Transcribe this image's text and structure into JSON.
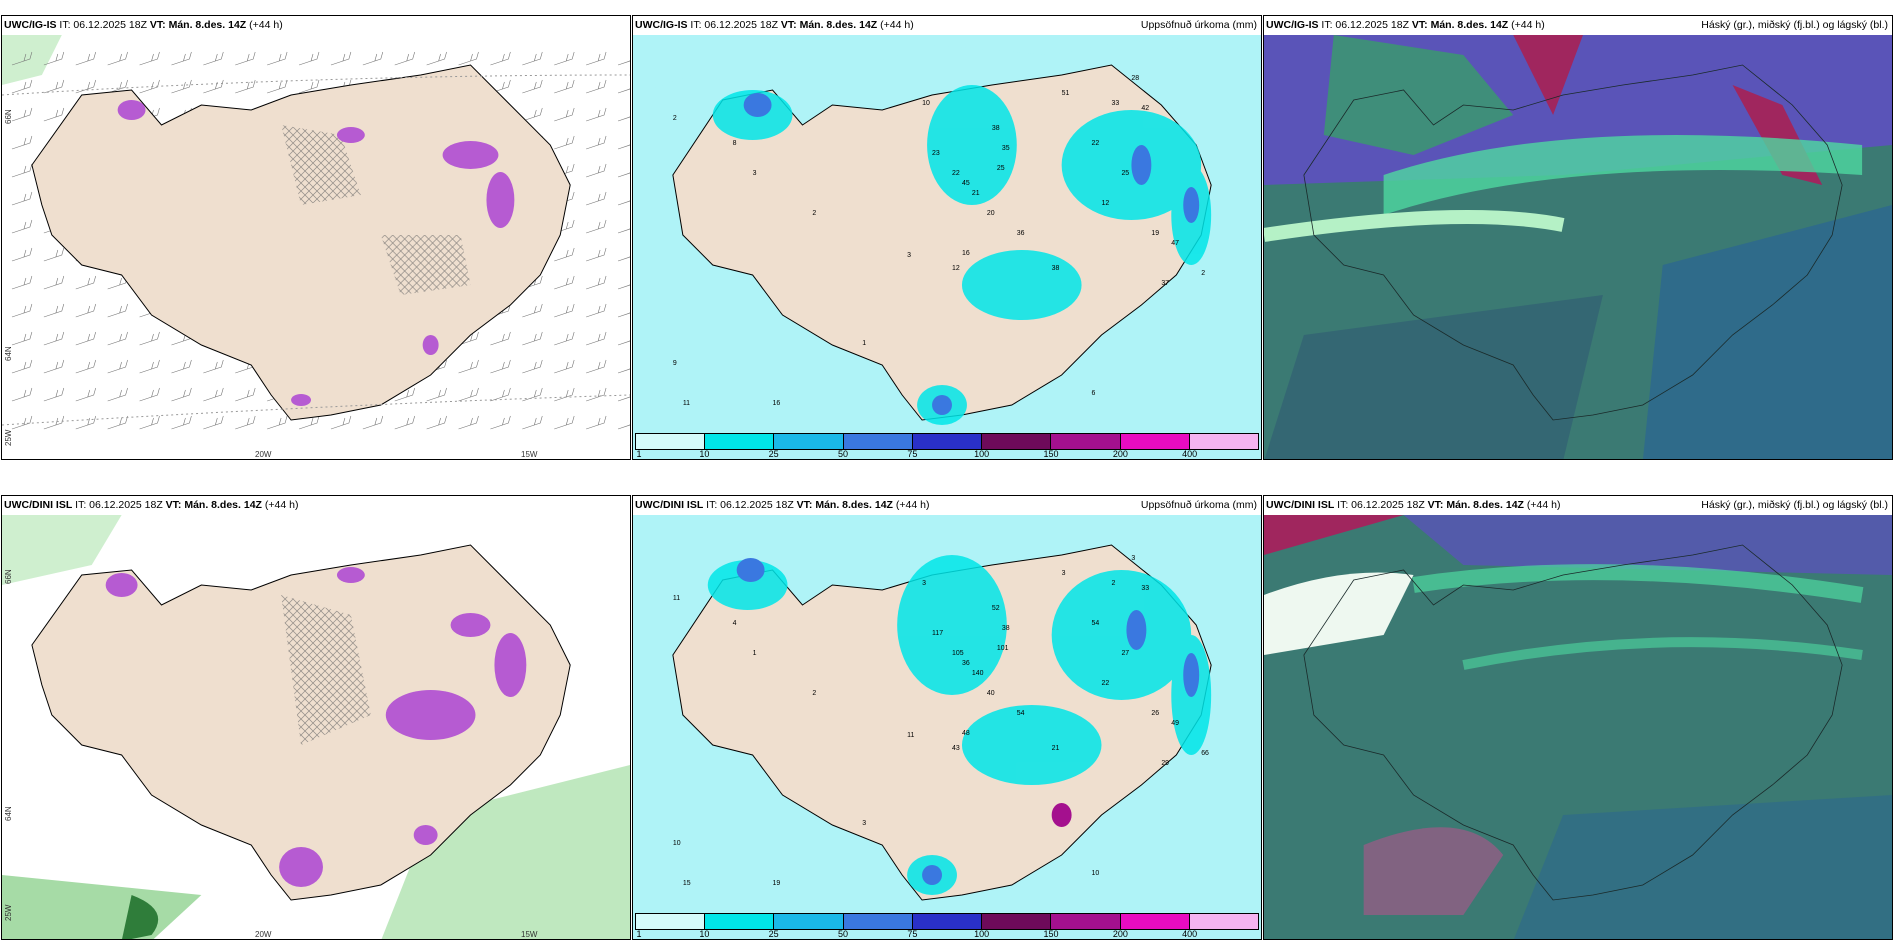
{
  "panels": [
    {
      "source": "UWC/IG-IS",
      "it": "IT: 06.12.2025 18Z",
      "vt": "VT: Mán. 8.des. 14Z",
      "lead": "(+44 h)",
      "right": "",
      "kind": "wind",
      "lat_top": "66N",
      "lat_bottom": "64N",
      "lat_edge": "25W",
      "lon_a": "20W",
      "lon_b": "15W"
    },
    {
      "source": "UWC/IG-IS",
      "it": "IT: 06.12.2025 18Z",
      "vt": "VT: Mán. 8.des. 14Z",
      "lead": "(+44 h)",
      "right": "Uppsöfnuð úrkoma (mm)",
      "kind": "precip",
      "numbers": [
        "2",
        "10",
        "51",
        "28",
        "33",
        "42",
        "38",
        "35",
        "25",
        "23",
        "22",
        "21",
        "20",
        "45",
        "22",
        "25",
        "12",
        "19",
        "47",
        "37",
        "38",
        "36",
        "2",
        "16",
        "12",
        "3",
        "9",
        "11",
        "16",
        "6",
        "1",
        "2",
        "3",
        "8"
      ]
    },
    {
      "source": "UWC/IG-IS",
      "it": "IT: 06.12.2025 18Z",
      "vt": "VT: Mán. 8.des. 14Z",
      "lead": "(+44 h)",
      "right": "Háský (gr.), miðský (fj.bl.) og lágský (bl.)",
      "kind": "cloud"
    },
    {
      "source": "UWC/DINI ISL",
      "it": "IT: 06.12.2025 18Z",
      "vt": "VT: Mán. 8.des. 14Z",
      "lead": "(+44 h)",
      "right": "",
      "kind": "wind",
      "lat_top": "66N",
      "lat_bottom": "64N",
      "lat_edge": "25W",
      "lon_a": "20W",
      "lon_b": "15W"
    },
    {
      "source": "UWC/DINI ISL",
      "it": "IT: 06.12.2025 18Z",
      "vt": "VT: Mán. 8.des. 14Z",
      "lead": "(+44 h)",
      "right": "Uppsöfnuð úrkoma (mm)",
      "kind": "precip",
      "numbers": [
        "11",
        "3",
        "3",
        "3",
        "2",
        "33",
        "52",
        "38",
        "101",
        "117",
        "105",
        "140",
        "40",
        "36",
        "54",
        "27",
        "22",
        "26",
        "49",
        "29",
        "21",
        "54",
        "66",
        "48",
        "43",
        "11",
        "10",
        "15",
        "19",
        "10",
        "3",
        "2",
        "1",
        "4"
      ]
    },
    {
      "source": "UWC/DINI ISL",
      "it": "IT: 06.12.2025 18Z",
      "vt": "VT: Mán. 8.des. 14Z",
      "lead": "(+44 h)",
      "right": "Háský (gr.), miðský (fj.bl.) og lágský (bl.)",
      "kind": "cloud"
    }
  ],
  "legend": {
    "labels": [
      "1",
      "10",
      "25",
      "50",
      "75",
      "100",
      "150",
      "200",
      "400"
    ],
    "colors": [
      "#d5fbfb",
      "#00e5e8",
      "#1ab8e8",
      "#3a78e0",
      "#2a30c8",
      "#6e0a5a",
      "#a4108e",
      "#e80cc0",
      "#f4b4f0"
    ]
  },
  "colors": {
    "land": "#efdfcf",
    "sea_precip": "#aff3f7",
    "cloud_green": "#3b7a73",
    "cloud_blue": "#2f6b8a",
    "cloud_purple": "#5a54b8"
  }
}
